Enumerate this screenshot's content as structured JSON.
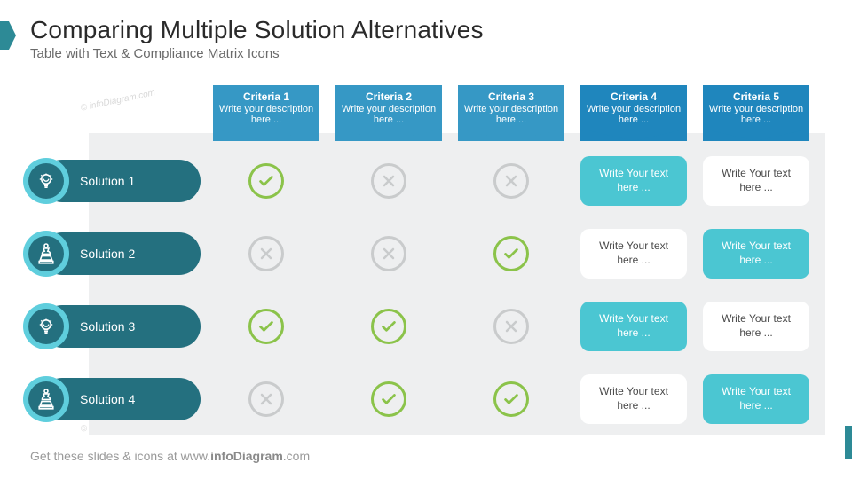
{
  "title": "Comparing Multiple Solution Alternatives",
  "subtitle": "Table with Text & Compliance Matrix Icons",
  "footer_prefix": "Get these slides  & icons at www.",
  "footer_bold": "infoDiagram",
  "footer_suffix": ".com",
  "watermark": "© infoDiagram.com",
  "criteria": [
    {
      "title": "Criteria 1",
      "desc": "Write your description here ...",
      "shade": "a"
    },
    {
      "title": "Criteria 2",
      "desc": "Write your description here ...",
      "shade": "a"
    },
    {
      "title": "Criteria 3",
      "desc": "Write your description here ...",
      "shade": "a"
    },
    {
      "title": "Criteria 4",
      "desc": "Write your description here ...",
      "shade": "b"
    },
    {
      "title": "Criteria 5",
      "desc": "Write your description here ...",
      "shade": "b"
    }
  ],
  "solutions": [
    {
      "label": "Solution 1",
      "icon": "bulb",
      "marks": [
        "ok",
        "no",
        "no"
      ],
      "boxes": [
        {
          "style": "teal",
          "text": "Write Your text here ..."
        },
        {
          "style": "white",
          "text": "Write Your text here ..."
        }
      ]
    },
    {
      "label": "Solution 2",
      "icon": "chess",
      "marks": [
        "no",
        "no",
        "ok"
      ],
      "boxes": [
        {
          "style": "white",
          "text": "Write Your text here ..."
        },
        {
          "style": "teal",
          "text": "Write Your text here ..."
        }
      ]
    },
    {
      "label": "Solution 3",
      "icon": "bulb",
      "marks": [
        "ok",
        "ok",
        "no"
      ],
      "boxes": [
        {
          "style": "teal",
          "text": "Write Your text here ..."
        },
        {
          "style": "white",
          "text": "Write Your text here ..."
        }
      ]
    },
    {
      "label": "Solution 4",
      "icon": "chess",
      "marks": [
        "no",
        "ok",
        "ok"
      ],
      "boxes": [
        {
          "style": "white",
          "text": "Write Your text here ..."
        },
        {
          "style": "teal",
          "text": "Write Your text here ..."
        }
      ]
    }
  ],
  "colors": {
    "teal_dark": "#24707f",
    "teal_light": "#5fcedd",
    "box_teal": "#4bc6d2",
    "crit_a": "#3698c5",
    "crit_b": "#1f86bd",
    "ok": "#8bc34a",
    "no": "#c9cbcc",
    "bg_panel": "#eeeff0"
  }
}
